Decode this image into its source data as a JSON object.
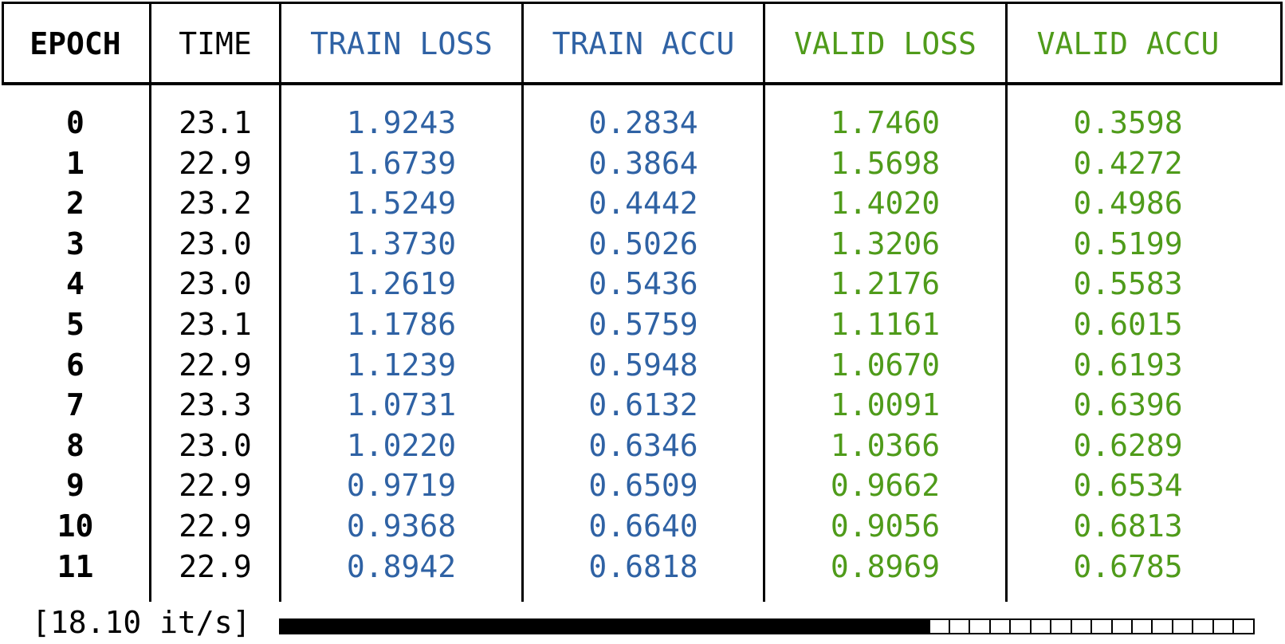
{
  "colors": {
    "default": "#000000",
    "train": "#2f62a4",
    "valid": "#4f9b1a"
  },
  "columns": [
    {
      "key": "epoch",
      "label": "EPOCH",
      "color": "default",
      "bold": true
    },
    {
      "key": "time",
      "label": "TIME",
      "color": "default",
      "bold": false
    },
    {
      "key": "train_loss",
      "label": "TRAIN LOSS",
      "color": "train",
      "bold": false
    },
    {
      "key": "train_accu",
      "label": "TRAIN ACCU",
      "color": "train",
      "bold": false
    },
    {
      "key": "valid_loss",
      "label": "VALID LOSS",
      "color": "valid",
      "bold": false
    },
    {
      "key": "valid_accu",
      "label": "VALID ACCU",
      "color": "valid",
      "bold": false
    }
  ],
  "rows": [
    [
      "0",
      "23.1",
      "1.9243",
      "0.2834",
      "1.7460",
      "0.3598"
    ],
    [
      "1",
      "22.9",
      "1.6739",
      "0.3864",
      "1.5698",
      "0.4272"
    ],
    [
      "2",
      "23.2",
      "1.5249",
      "0.4442",
      "1.4020",
      "0.4986"
    ],
    [
      "3",
      "23.0",
      "1.3730",
      "0.5026",
      "1.3206",
      "0.5199"
    ],
    [
      "4",
      "23.0",
      "1.2619",
      "0.5436",
      "1.2176",
      "0.5583"
    ],
    [
      "5",
      "23.1",
      "1.1786",
      "0.5759",
      "1.1161",
      "0.6015"
    ],
    [
      "6",
      "22.9",
      "1.1239",
      "0.5948",
      "1.0670",
      "0.6193"
    ],
    [
      "7",
      "23.3",
      "1.0731",
      "0.6132",
      "1.0091",
      "0.6396"
    ],
    [
      "8",
      "23.0",
      "1.0220",
      "0.6346",
      "1.0366",
      "0.6289"
    ],
    [
      "9",
      "22.9",
      "0.9719",
      "0.6509",
      "0.9662",
      "0.6534"
    ],
    [
      "10",
      "22.9",
      "0.9368",
      "0.6640",
      "0.9056",
      "0.6813"
    ],
    [
      "11",
      "22.9",
      "0.8942",
      "0.6818",
      "0.8969",
      "0.6785"
    ]
  ],
  "progress": {
    "rate_text": "[18.10 it/s]",
    "fraction": 0.6667,
    "segments": 48
  }
}
